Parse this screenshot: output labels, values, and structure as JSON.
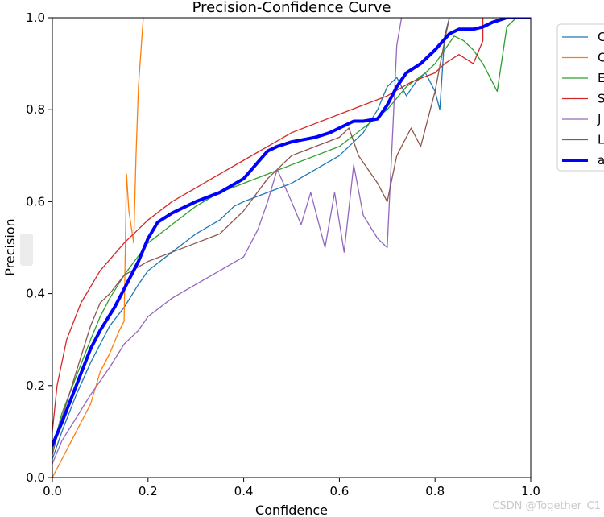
{
  "chart_data": {
    "type": "line",
    "title": "Precision-Confidence Curve",
    "xlabel": "Confidence",
    "ylabel": "Precision",
    "xlim": [
      0,
      1
    ],
    "ylim": [
      0,
      1
    ],
    "xticks": [
      "0.0",
      "0.2",
      "0.4",
      "0.6",
      "0.8",
      "1.0"
    ],
    "yticks": [
      "0.0",
      "0.2",
      "0.4",
      "0.6",
      "0.8",
      "1.0"
    ],
    "legend_position": "right, outside plot",
    "series": [
      {
        "name": "C",
        "color": "#1f77b4",
        "width": 1.3,
        "points": [
          [
            0,
            0.04
          ],
          [
            0.02,
            0.1
          ],
          [
            0.05,
            0.18
          ],
          [
            0.08,
            0.25
          ],
          [
            0.1,
            0.29
          ],
          [
            0.12,
            0.33
          ],
          [
            0.15,
            0.37
          ],
          [
            0.18,
            0.42
          ],
          [
            0.2,
            0.45
          ],
          [
            0.25,
            0.49
          ],
          [
            0.3,
            0.53
          ],
          [
            0.35,
            0.56
          ],
          [
            0.38,
            0.59
          ],
          [
            0.4,
            0.6
          ],
          [
            0.45,
            0.62
          ],
          [
            0.5,
            0.64
          ],
          [
            0.55,
            0.67
          ],
          [
            0.6,
            0.7
          ],
          [
            0.65,
            0.75
          ],
          [
            0.68,
            0.8
          ],
          [
            0.7,
            0.85
          ],
          [
            0.72,
            0.87
          ],
          [
            0.74,
            0.83
          ],
          [
            0.76,
            0.86
          ],
          [
            0.78,
            0.88
          ],
          [
            0.8,
            0.84
          ],
          [
            0.81,
            0.8
          ],
          [
            0.82,
            0.96
          ],
          [
            0.83,
            1.0
          ]
        ]
      },
      {
        "name": "C",
        "color": "#ff7f0e",
        "width": 1.3,
        "points": [
          [
            0,
            0.0
          ],
          [
            0.02,
            0.04
          ],
          [
            0.05,
            0.1
          ],
          [
            0.08,
            0.16
          ],
          [
            0.1,
            0.23
          ],
          [
            0.12,
            0.27
          ],
          [
            0.14,
            0.32
          ],
          [
            0.15,
            0.34
          ],
          [
            0.155,
            0.66
          ],
          [
            0.16,
            0.58
          ],
          [
            0.17,
            0.51
          ],
          [
            0.175,
            0.7
          ],
          [
            0.18,
            0.85
          ],
          [
            0.19,
            1.0
          ]
        ]
      },
      {
        "name": "E",
        "color": "#2ca02c",
        "width": 1.3,
        "points": [
          [
            0,
            0.06
          ],
          [
            0.02,
            0.14
          ],
          [
            0.05,
            0.22
          ],
          [
            0.08,
            0.3
          ],
          [
            0.1,
            0.35
          ],
          [
            0.12,
            0.39
          ],
          [
            0.15,
            0.44
          ],
          [
            0.2,
            0.51
          ],
          [
            0.25,
            0.55
          ],
          [
            0.3,
            0.59
          ],
          [
            0.35,
            0.62
          ],
          [
            0.4,
            0.64
          ],
          [
            0.45,
            0.66
          ],
          [
            0.5,
            0.68
          ],
          [
            0.55,
            0.7
          ],
          [
            0.6,
            0.72
          ],
          [
            0.65,
            0.76
          ],
          [
            0.7,
            0.8
          ],
          [
            0.74,
            0.85
          ],
          [
            0.78,
            0.88
          ],
          [
            0.8,
            0.9
          ],
          [
            0.82,
            0.93
          ],
          [
            0.84,
            0.96
          ],
          [
            0.86,
            0.95
          ],
          [
            0.88,
            0.93
          ],
          [
            0.9,
            0.9
          ],
          [
            0.93,
            0.84
          ],
          [
            0.95,
            0.98
          ],
          [
            0.97,
            1.0
          ],
          [
            1.0,
            1.0
          ]
        ]
      },
      {
        "name": "S",
        "color": "#d62728",
        "width": 1.3,
        "points": [
          [
            0,
            0.1
          ],
          [
            0.01,
            0.2
          ],
          [
            0.03,
            0.3
          ],
          [
            0.06,
            0.38
          ],
          [
            0.1,
            0.45
          ],
          [
            0.15,
            0.51
          ],
          [
            0.2,
            0.56
          ],
          [
            0.25,
            0.6
          ],
          [
            0.3,
            0.63
          ],
          [
            0.35,
            0.66
          ],
          [
            0.4,
            0.69
          ],
          [
            0.45,
            0.72
          ],
          [
            0.5,
            0.75
          ],
          [
            0.55,
            0.77
          ],
          [
            0.6,
            0.79
          ],
          [
            0.65,
            0.81
          ],
          [
            0.7,
            0.83
          ],
          [
            0.75,
            0.86
          ],
          [
            0.8,
            0.88
          ],
          [
            0.82,
            0.9
          ],
          [
            0.85,
            0.92
          ],
          [
            0.88,
            0.9
          ],
          [
            0.9,
            0.95
          ],
          [
            0.9,
            1.0
          ]
        ]
      },
      {
        "name": "J",
        "color": "#9467bd",
        "width": 1.3,
        "points": [
          [
            0,
            0.03
          ],
          [
            0.02,
            0.08
          ],
          [
            0.05,
            0.13
          ],
          [
            0.08,
            0.18
          ],
          [
            0.1,
            0.21
          ],
          [
            0.12,
            0.24
          ],
          [
            0.15,
            0.29
          ],
          [
            0.18,
            0.32
          ],
          [
            0.2,
            0.35
          ],
          [
            0.25,
            0.39
          ],
          [
            0.3,
            0.42
          ],
          [
            0.35,
            0.45
          ],
          [
            0.4,
            0.48
          ],
          [
            0.43,
            0.54
          ],
          [
            0.45,
            0.6
          ],
          [
            0.47,
            0.67
          ],
          [
            0.5,
            0.6
          ],
          [
            0.52,
            0.55
          ],
          [
            0.54,
            0.62
          ],
          [
            0.57,
            0.5
          ],
          [
            0.59,
            0.62
          ],
          [
            0.61,
            0.49
          ],
          [
            0.63,
            0.68
          ],
          [
            0.65,
            0.57
          ],
          [
            0.68,
            0.52
          ],
          [
            0.7,
            0.5
          ],
          [
            0.72,
            0.94
          ],
          [
            0.73,
            1.0
          ]
        ]
      },
      {
        "name": "L",
        "color": "#8c564b",
        "width": 1.3,
        "points": [
          [
            0,
            0.05
          ],
          [
            0.02,
            0.13
          ],
          [
            0.05,
            0.23
          ],
          [
            0.08,
            0.33
          ],
          [
            0.1,
            0.38
          ],
          [
            0.12,
            0.4
          ],
          [
            0.15,
            0.44
          ],
          [
            0.2,
            0.47
          ],
          [
            0.25,
            0.49
          ],
          [
            0.3,
            0.51
          ],
          [
            0.35,
            0.53
          ],
          [
            0.4,
            0.58
          ],
          [
            0.45,
            0.65
          ],
          [
            0.5,
            0.7
          ],
          [
            0.55,
            0.72
          ],
          [
            0.6,
            0.74
          ],
          [
            0.62,
            0.76
          ],
          [
            0.64,
            0.7
          ],
          [
            0.68,
            0.64
          ],
          [
            0.7,
            0.6
          ],
          [
            0.72,
            0.7
          ],
          [
            0.75,
            0.76
          ],
          [
            0.77,
            0.72
          ],
          [
            0.79,
            0.8
          ],
          [
            0.8,
            0.84
          ],
          [
            0.82,
            0.95
          ],
          [
            0.83,
            1.0
          ]
        ]
      },
      {
        "name": "a",
        "color": "#0000ff",
        "width": 4,
        "points": [
          [
            0,
            0.07
          ],
          [
            0.02,
            0.12
          ],
          [
            0.05,
            0.2
          ],
          [
            0.08,
            0.28
          ],
          [
            0.1,
            0.32
          ],
          [
            0.13,
            0.37
          ],
          [
            0.15,
            0.41
          ],
          [
            0.18,
            0.47
          ],
          [
            0.2,
            0.52
          ],
          [
            0.22,
            0.555
          ],
          [
            0.25,
            0.575
          ],
          [
            0.3,
            0.6
          ],
          [
            0.35,
            0.62
          ],
          [
            0.4,
            0.65
          ],
          [
            0.45,
            0.71
          ],
          [
            0.47,
            0.72
          ],
          [
            0.5,
            0.73
          ],
          [
            0.55,
            0.74
          ],
          [
            0.58,
            0.75
          ],
          [
            0.6,
            0.76
          ],
          [
            0.63,
            0.775
          ],
          [
            0.65,
            0.775
          ],
          [
            0.68,
            0.78
          ],
          [
            0.7,
            0.81
          ],
          [
            0.72,
            0.85
          ],
          [
            0.74,
            0.88
          ],
          [
            0.77,
            0.9
          ],
          [
            0.8,
            0.93
          ],
          [
            0.83,
            0.965
          ],
          [
            0.85,
            0.975
          ],
          [
            0.88,
            0.975
          ],
          [
            0.9,
            0.98
          ],
          [
            0.92,
            0.99
          ],
          [
            0.95,
            1.0
          ],
          [
            1.0,
            1.0
          ]
        ]
      }
    ]
  },
  "watermark": "CSDN @Together_C1"
}
